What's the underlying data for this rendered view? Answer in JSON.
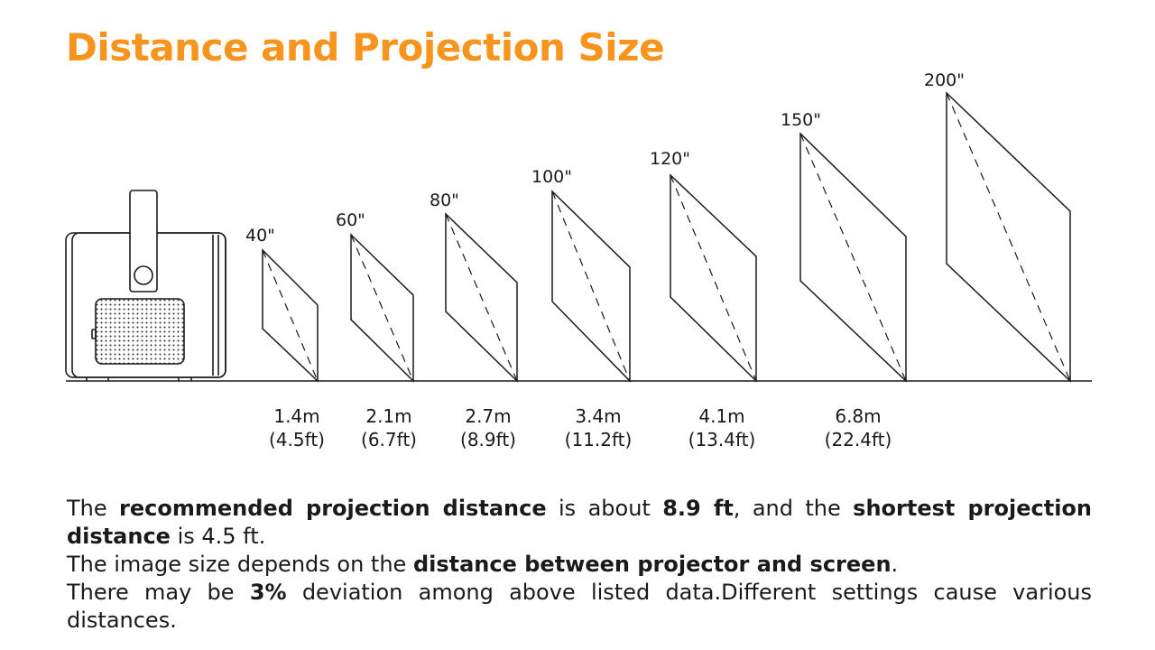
{
  "title": "Distance and Projection Size",
  "sizes": [
    {
      "size": "40\"",
      "distance_m": "1.4m",
      "distance_ft": "(4.5ft)"
    },
    {
      "size": "60\"",
      "distance_m": "2.1m",
      "distance_ft": "(6.7ft)"
    },
    {
      "size": "80\"",
      "distance_m": "2.7m",
      "distance_ft": "(8.9ft)"
    },
    {
      "size": "100\"",
      "distance_m": "3.4m",
      "distance_ft": "(11.2ft)"
    },
    {
      "size": "120\"",
      "distance_m": "4.1m",
      "distance_ft": "(13.4ft)"
    },
    {
      "size": "150\"",
      "distance_m": "6.8m",
      "distance_ft": "(22.4ft)"
    },
    {
      "size": "200\""
    }
  ],
  "description": {
    "line1": {
      "p1": "The ",
      "b1": "recommended projection distance",
      "p2": " is about ",
      "b2": "8.9 ft",
      "p3": ", and the ",
      "b3": "shortest projection distance",
      "p4": " is 4.5 ft."
    },
    "line2": {
      "p1": "The image size depends on the ",
      "b1": "distance between projector and screen",
      "p2": "."
    },
    "line3": {
      "p1": "There may be ",
      "b1": "3%",
      "p2": " deviation among above listed data.Different settings cause various distances."
    }
  },
  "colors": {
    "title": "#f7941d",
    "text": "#1a1a1a",
    "lines": "#1a1a1a"
  }
}
